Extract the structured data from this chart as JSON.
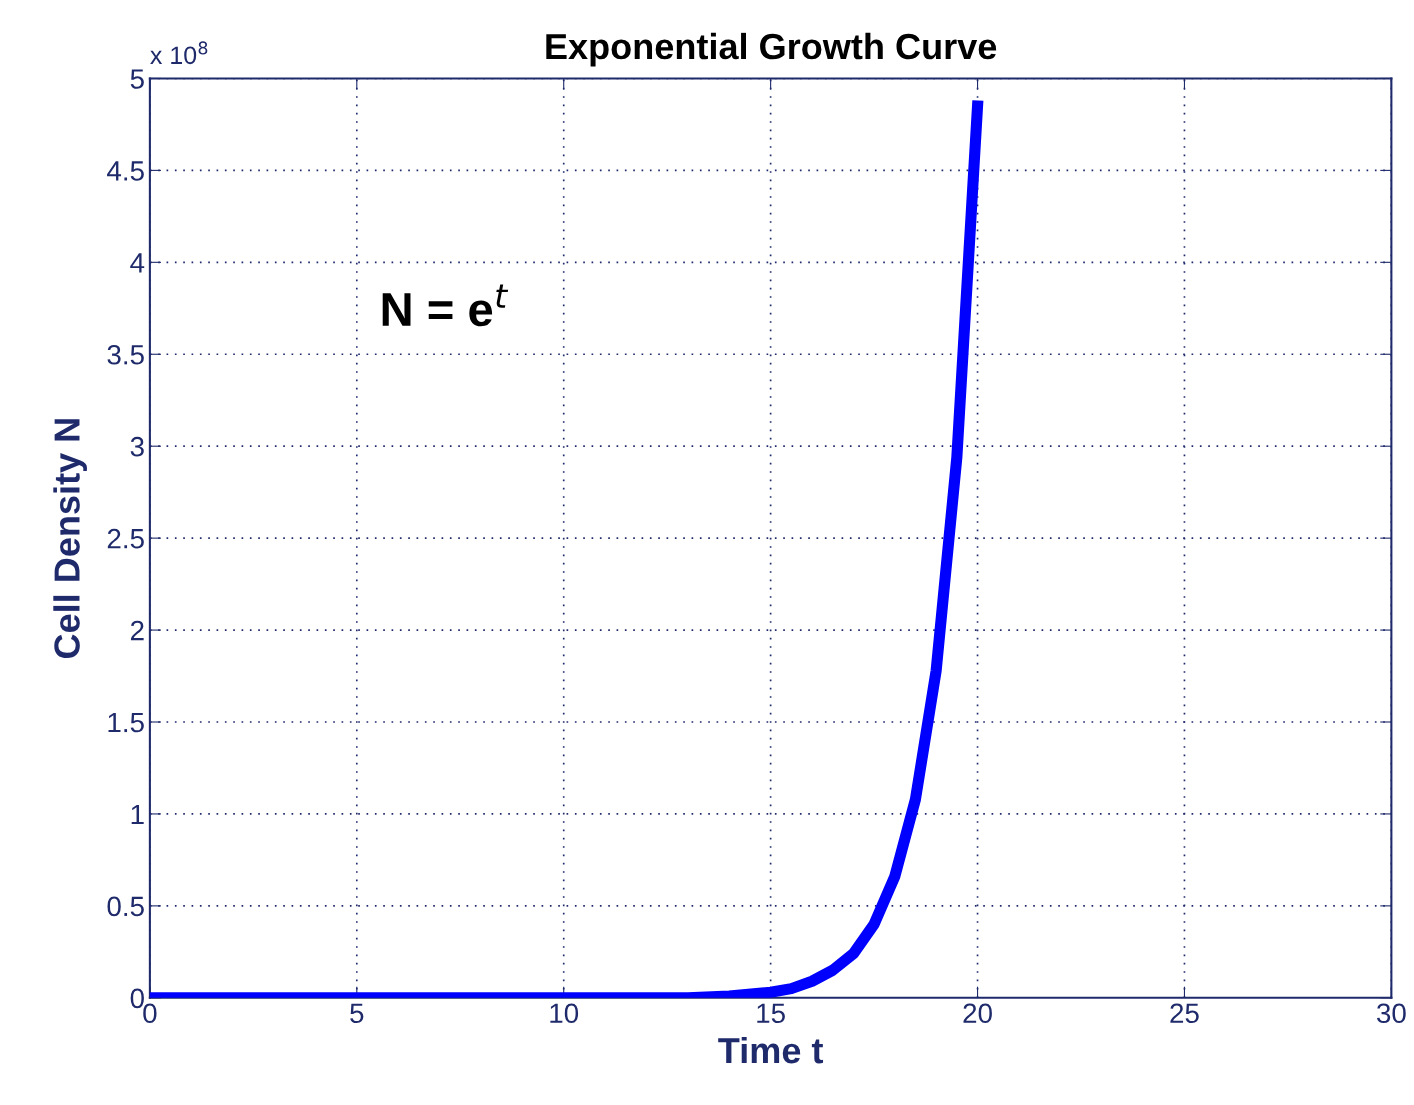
{
  "chart_data": {
    "type": "line",
    "title": "Exponential Growth Curve",
    "xlabel": "Time t",
    "ylabel": "Cell Density N",
    "annotations": [
      "x 10$^{8}$",
      "N = e$^{t}$"
    ],
    "x": [
      0,
      5,
      10,
      13,
      14,
      15,
      15.5,
      16,
      16.5,
      17,
      17.5,
      18,
      18.5,
      19,
      19.5,
      20
    ],
    "series": [
      {
        "color": "#0000ff",
        "values": [
          0,
          0,
          0,
          0,
          0.01,
          0.03,
          0.05,
          0.09,
          0.15,
          0.24,
          0.4,
          0.66,
          1.08,
          1.78,
          2.94,
          4.85
        ]
      }
    ],
    "xlim": [
      0,
      30
    ],
    "ylim": [
      0,
      5
    ],
    "xticks": [
      0,
      5,
      10,
      15,
      20,
      25,
      30
    ],
    "yticks": [
      0,
      0.5,
      1,
      1.5,
      2,
      2.5,
      3,
      3.5,
      4,
      4.5,
      5
    ],
    "grid": true,
    "marker": "none",
    "line_style": "solid"
  }
}
